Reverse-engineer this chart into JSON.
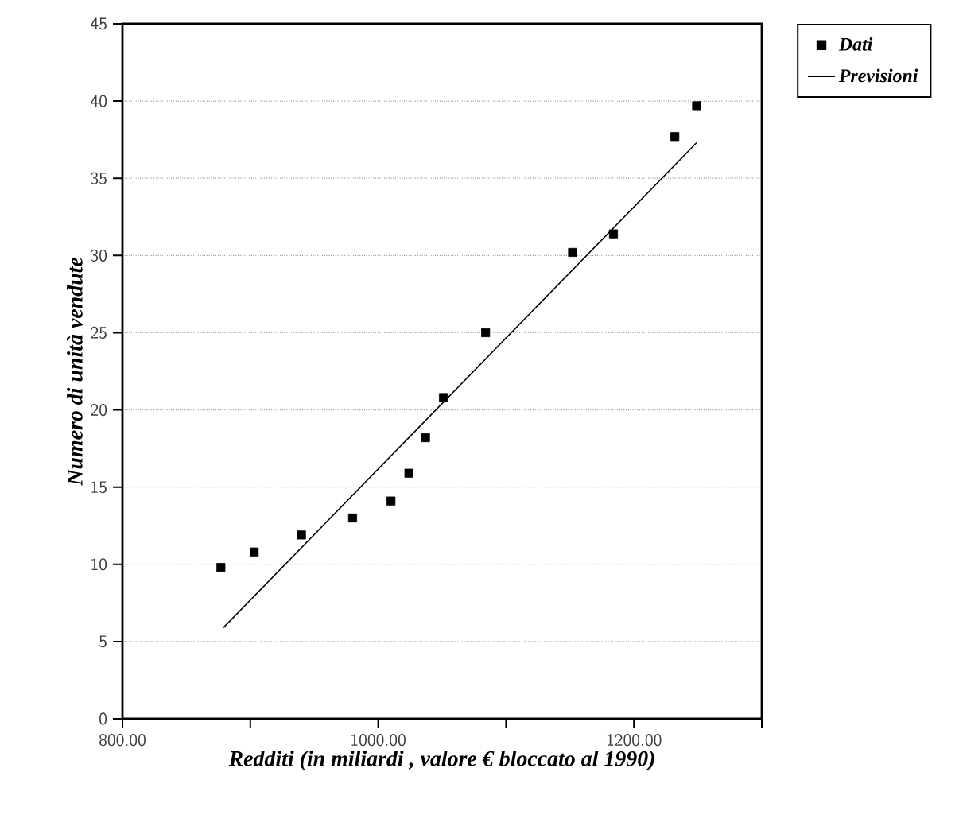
{
  "chart_data": {
    "type": "scatter",
    "xlabel": "Redditi (in miliardi , valore € bloccato al 1990)",
    "ylabel": "Numero di unità vendute",
    "xlim": [
      800,
      1300
    ],
    "ylim": [
      0,
      45
    ],
    "xticks": [
      {
        "value": 800,
        "label": "800.00"
      },
      {
        "value": 900,
        "label": null
      },
      {
        "value": 1000,
        "label": "1000.00"
      },
      {
        "value": 1100,
        "label": null
      },
      {
        "value": 1200,
        "label": "1200.00"
      },
      {
        "value": 1300,
        "label": null
      }
    ],
    "yticks": [
      0,
      5,
      10,
      15,
      20,
      25,
      30,
      35,
      40,
      45
    ],
    "grid": "y",
    "legend": "top right",
    "series": [
      {
        "name": "Dati",
        "marker": "square",
        "color": "#000000",
        "x": [
          877,
          903,
          940,
          980,
          1010,
          1024,
          1037,
          1051,
          1084,
          1152,
          1184,
          1232,
          1249
        ],
        "values": [
          9.8,
          10.8,
          11.9,
          13,
          14.1,
          15.9,
          18.2,
          20.8,
          25,
          30.2,
          31.4,
          37.7,
          39.7
        ]
      },
      {
        "name": "Previsioni",
        "type": "line",
        "marker": "none",
        "color": "#000000",
        "x": [
          879,
          1249
        ],
        "values": [
          5.9,
          37.3
        ]
      }
    ]
  }
}
